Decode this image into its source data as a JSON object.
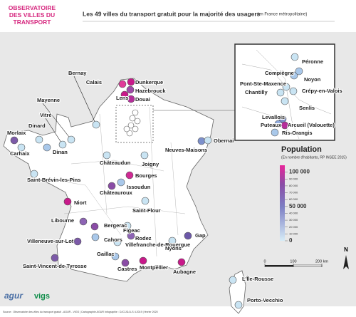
{
  "header": {
    "logo": "OBSERVATOIRE DES VILLES DU TRANSPORT GRATUIT",
    "title": "Les 49 villes du transport gratuit pour la majorité des usagers",
    "subtitle": "(en France métropolitaine)"
  },
  "cities": [
    {
      "name": "Calais",
      "color": "#e03a9a"
    },
    {
      "name": "Dunkerque",
      "color": "#c8198a"
    },
    {
      "name": "Hazebrouck",
      "color": "#a04aa8"
    },
    {
      "name": "Lens",
      "color": "#c8198a"
    },
    {
      "name": "Douai",
      "color": "#b52e9a"
    },
    {
      "name": "Bernay",
      "color": "#c9e4f3"
    },
    {
      "name": "Mayenne",
      "color": "#c9e4f3"
    },
    {
      "name": "Vitré",
      "color": "#c9e4f3"
    },
    {
      "name": "Dinard",
      "color": "#c9e4f3"
    },
    {
      "name": "Morlaix",
      "color": "#7c5aa8"
    },
    {
      "name": "Carhaix",
      "color": "#c9e4f3"
    },
    {
      "name": "Dinan",
      "color": "#a9c8ea"
    },
    {
      "name": "Neuves-Maisons",
      "color": "#7d90cc"
    },
    {
      "name": "Obernai",
      "color": "#c9e4f3"
    },
    {
      "name": "Châteaudun",
      "color": "#c9e4f3"
    },
    {
      "name": "Joigny",
      "color": "#c9e4f3"
    },
    {
      "name": "Saint-Brévin-les-Pins",
      "color": "#c9e4f3"
    },
    {
      "name": "Bourges",
      "color": "#d02a94"
    },
    {
      "name": "Issoudun",
      "color": "#a9c8ea"
    },
    {
      "name": "Châteauroux",
      "color": "#8a4ca6"
    },
    {
      "name": "Niort",
      "color": "#c8198a"
    },
    {
      "name": "Saint-Flour",
      "color": "#c9e4f3"
    },
    {
      "name": "Libourne",
      "color": "#8d64b4"
    },
    {
      "name": "Bergerac",
      "color": "#8a4ca6"
    },
    {
      "name": "Figeac",
      "color": "#c9e4f3"
    },
    {
      "name": "Rodez",
      "color": "#8d64b4"
    },
    {
      "name": "Gap",
      "color": "#6c58a8"
    },
    {
      "name": "Villeneuve-sur-Lot",
      "color": "#7c5aa8"
    },
    {
      "name": "Cahors",
      "color": "#a9c8ea"
    },
    {
      "name": "Villefranche-de-Rouergue",
      "color": "#c9e4f3"
    },
    {
      "name": "Nyons",
      "color": "#c9e4f3"
    },
    {
      "name": "Gaillac",
      "color": "#a9c8ea"
    },
    {
      "name": "Saint-Vincent-de-Tyrosse",
      "color": "#7c5aa8"
    },
    {
      "name": "Castres",
      "color": "#8a4ca6"
    },
    {
      "name": "Montpellier",
      "color": "#c8198a"
    },
    {
      "name": "Aubagne",
      "color": "#c8198a"
    },
    {
      "name": "L'Île-Rousse",
      "color": "#c9e4f3"
    },
    {
      "name": "Porto-Vecchio",
      "color": "#c9e4f3"
    },
    {
      "name": "Péronne",
      "color": "#c9e4f3"
    },
    {
      "name": "Compiègne",
      "color": "#a9c8ea"
    },
    {
      "name": "Noyon",
      "color": "#a9c8ea"
    },
    {
      "name": "Pont-Ste-Maxence",
      "color": "#c9e4f3"
    },
    {
      "name": "Chantilly",
      "color": "#c9e4f3"
    },
    {
      "name": "Crépy-en-Valois",
      "color": "#c9e4f3"
    },
    {
      "name": "Senlis",
      "color": "#c9e4f3"
    },
    {
      "name": "Levallois",
      "color": "#7d90cc"
    },
    {
      "name": "Puteaux",
      "color": "#8da8dc"
    },
    {
      "name": "Arcueil (Valouette)",
      "color": "#b52e9a"
    },
    {
      "name": "Ris-Orangis",
      "color": "#a9c8ea"
    }
  ],
  "legend": {
    "title": "Population",
    "subtitle": "(En nombre d'habitants, RP INSEE 2015)",
    "ticks": [
      {
        "value": 100000,
        "label": "100 000"
      },
      {
        "value": 90000,
        "label": "90 000"
      },
      {
        "value": 80000,
        "label": "80 000"
      },
      {
        "value": 70000,
        "label": "70 000"
      },
      {
        "value": 60000,
        "label": "60 000"
      },
      {
        "value": 50000,
        "label": "50 000"
      },
      {
        "value": 40000,
        "label": "40 000"
      },
      {
        "value": 30000,
        "label": "30 000"
      },
      {
        "value": 20000,
        "label": "20 000"
      },
      {
        "value": 10000,
        "label": "10 000"
      },
      0
    ]
  },
  "scale": {
    "ticks": [
      0,
      100,
      {
        "value": 200,
        "label": "200 km"
      }
    ]
  },
  "north": "N",
  "footer": {
    "source": "Source : Observatoire des villes du transport gratuit - AGUR - VIGS | Cartographie AGUR Infographie : DJC/JDJ-LS 4.2019 | février 2020",
    "logo1": "agur",
    "logo2": "vigs"
  }
}
